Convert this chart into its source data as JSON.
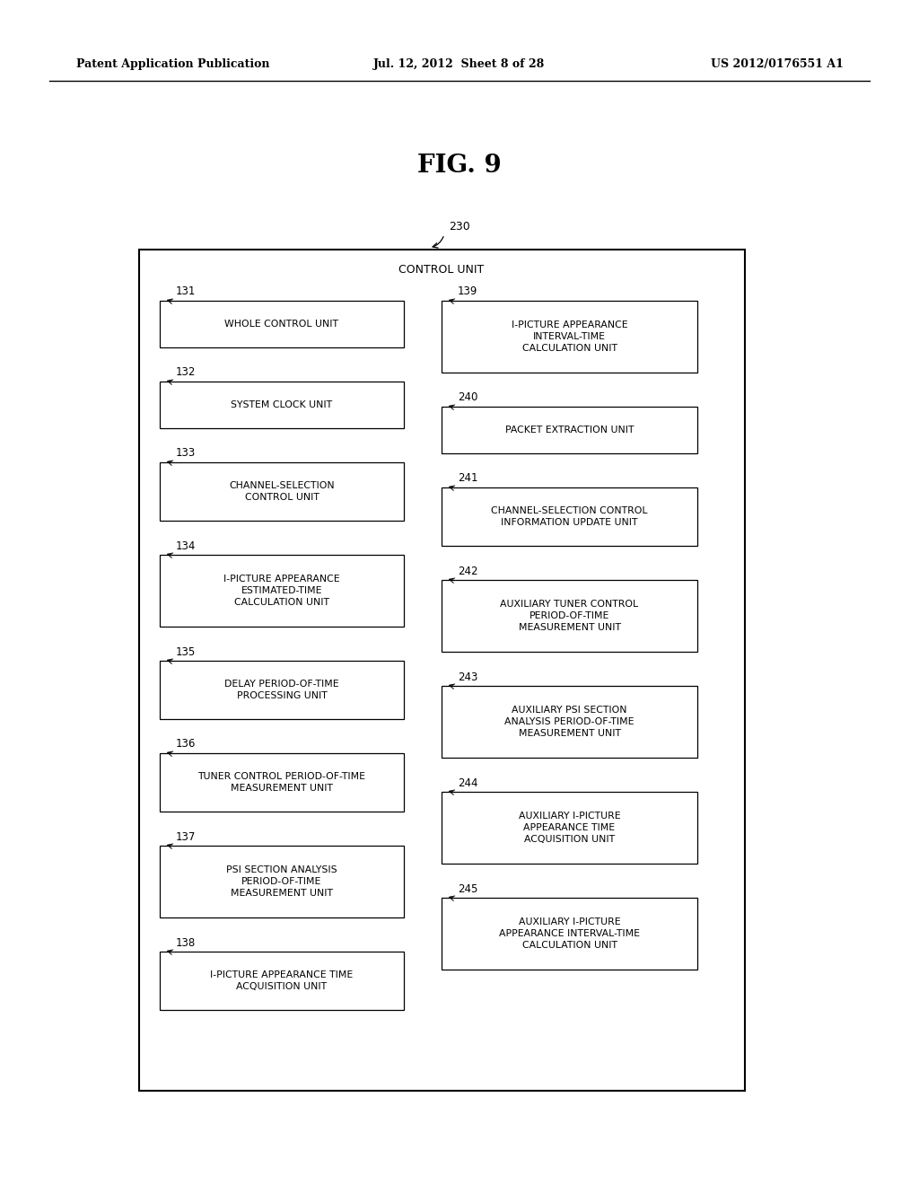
{
  "fig_title": "FIG. 9",
  "header_left": "Patent Application Publication",
  "header_center": "Jul. 12, 2012  Sheet 8 of 28",
  "header_right": "US 2012/0176551 A1",
  "outer_label": "230",
  "outer_title": "CONTROL UNIT",
  "left_boxes": [
    {
      "id": "131",
      "lines": [
        "WHOLE CONTROL UNIT"
      ]
    },
    {
      "id": "132",
      "lines": [
        "SYSTEM CLOCK UNIT"
      ]
    },
    {
      "id": "133",
      "lines": [
        "CHANNEL-SELECTION",
        "CONTROL UNIT"
      ]
    },
    {
      "id": "134",
      "lines": [
        "I-PICTURE APPEARANCE",
        "ESTIMATED-TIME",
        "CALCULATION UNIT"
      ]
    },
    {
      "id": "135",
      "lines": [
        "DELAY PERIOD-OF-TIME",
        "PROCESSING UNIT"
      ]
    },
    {
      "id": "136",
      "lines": [
        "TUNER CONTROL PERIOD-OF-TIME",
        "MEASUREMENT UNIT"
      ]
    },
    {
      "id": "137",
      "lines": [
        "PSI SECTION ANALYSIS",
        "PERIOD-OF-TIME",
        "MEASUREMENT UNIT"
      ]
    },
    {
      "id": "138",
      "lines": [
        "I-PICTURE APPEARANCE TIME",
        "ACQUISITION UNIT"
      ]
    }
  ],
  "right_boxes": [
    {
      "id": "139",
      "lines": [
        "I-PICTURE APPEARANCE",
        "INTERVAL-TIME",
        "CALCULATION UNIT"
      ]
    },
    {
      "id": "240",
      "lines": [
        "PACKET EXTRACTION UNIT"
      ]
    },
    {
      "id": "241",
      "lines": [
        "CHANNEL-SELECTION CONTROL",
        "INFORMATION UPDATE UNIT"
      ]
    },
    {
      "id": "242",
      "lines": [
        "AUXILIARY TUNER CONTROL",
        "PERIOD-OF-TIME",
        "MEASUREMENT UNIT"
      ]
    },
    {
      "id": "243",
      "lines": [
        "AUXILIARY PSI SECTION",
        "ANALYSIS PERIOD-OF-TIME",
        "MEASUREMENT UNIT"
      ]
    },
    {
      "id": "244",
      "lines": [
        "AUXILIARY I-PICTURE",
        "APPEARANCE TIME",
        "ACQUISITION UNIT"
      ]
    },
    {
      "id": "245",
      "lines": [
        "AUXILIARY I-PICTURE",
        "APPEARANCE INTERVAL-TIME",
        "CALCULATION UNIT"
      ]
    }
  ],
  "bg_color": "#ffffff",
  "box_edge_color": "#000000",
  "text_color": "#000000"
}
